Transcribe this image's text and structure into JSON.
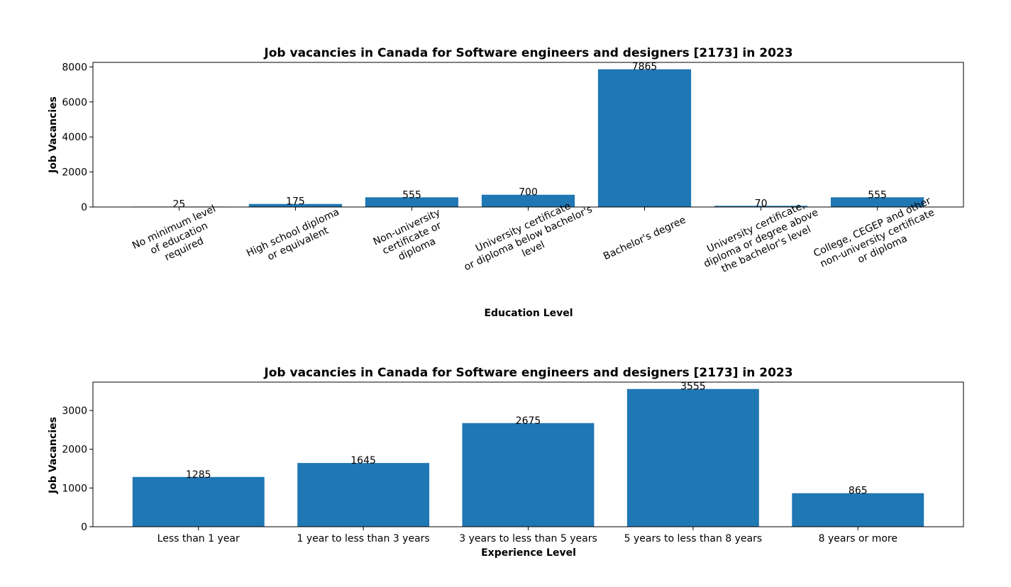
{
  "chart_data": [
    {
      "type": "bar",
      "title": "Job vacancies in Canada for Software engineers and designers [2173] in 2023",
      "xlabel": "Education Level",
      "ylabel": "Job Vacancies",
      "categories": [
        [
          "No minimum level",
          "of education",
          "required"
        ],
        [
          "High school diploma",
          "or equivalent"
        ],
        [
          "Non-university",
          "certificate or",
          "diploma"
        ],
        [
          "University certificate",
          "or diploma below bachelor's",
          "level"
        ],
        [
          "Bachelor's degree"
        ],
        [
          "University certificate,",
          "diploma or degree above",
          "the bachelor's level"
        ],
        [
          "College, CEGEP and other",
          "non-university certificate",
          "or diploma"
        ]
      ],
      "values": [
        25,
        175,
        555,
        700,
        7865,
        70,
        555
      ],
      "yticks": [
        0,
        2000,
        4000,
        6000,
        8000
      ],
      "ylim": [
        0,
        8258
      ],
      "x_tick_rotation": -25,
      "bar_color": "#1f77b4",
      "grid": false
    },
    {
      "type": "bar",
      "title": "Job vacancies in Canada for Software engineers and designers [2173] in 2023",
      "xlabel": "Experience Level",
      "ylabel": "Job Vacancies",
      "categories": [
        [
          "Less than 1 year"
        ],
        [
          "1 year to less than 3 years"
        ],
        [
          "3 years to less than 5 years"
        ],
        [
          "5 years to less than 8 years"
        ],
        [
          "8 years or more"
        ]
      ],
      "values": [
        1285,
        1645,
        2675,
        3555,
        865
      ],
      "yticks": [
        0,
        1000,
        2000,
        3000
      ],
      "ylim": [
        0,
        3733
      ],
      "x_tick_rotation": 0,
      "bar_color": "#1f77b4",
      "grid": false
    }
  ]
}
